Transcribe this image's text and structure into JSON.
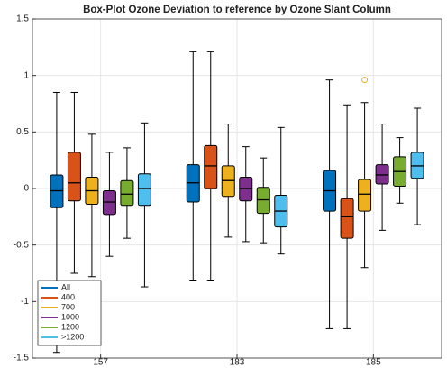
{
  "chart_data": {
    "type": "box",
    "title": "Box-Plot Ozone Deviation to reference by Ozone Slant Column",
    "categories": [
      "157",
      "183",
      "185"
    ],
    "ylim": [
      -1.5,
      1.5
    ],
    "yticks": [
      -1.5,
      -1,
      -0.5,
      0,
      0.5,
      1,
      1.5
    ],
    "grid": true,
    "legend": "lower left",
    "series": [
      {
        "name": "All",
        "color": "#0072bd",
        "low": [
          -1.45,
          -0.81,
          -1.24
        ],
        "q1": [
          -0.17,
          -0.12,
          -0.2
        ],
        "median": [
          -0.02,
          0.05,
          -0.02
        ],
        "q3": [
          0.12,
          0.21,
          0.16
        ],
        "high": [
          0.85,
          1.21,
          0.96
        ]
      },
      {
        "name": "400",
        "color": "#d95319",
        "low": [
          -0.75,
          -0.81,
          -1.24
        ],
        "q1": [
          -0.11,
          0,
          -0.44
        ],
        "median": [
          0.05,
          0.2,
          -0.25
        ],
        "q3": [
          0.32,
          0.38,
          -0.09
        ],
        "high": [
          0.85,
          1.21,
          0.74
        ]
      },
      {
        "name": "700",
        "color": "#edb120",
        "low": [
          -0.78,
          -0.43,
          -0.7
        ],
        "q1": [
          -0.14,
          -0.07,
          -0.2
        ],
        "median": [
          -0.02,
          0.07,
          -0.05
        ],
        "q3": [
          0.1,
          0.2,
          0.08
        ],
        "high": [
          0.48,
          0.57,
          0.76
        ],
        "outliers": [
          [],
          [],
          [
            0.96
          ]
        ]
      },
      {
        "name": "1000",
        "color": "#7e2f8e",
        "low": [
          -0.6,
          -0.47,
          -0.37
        ],
        "q1": [
          -0.23,
          -0.11,
          0.04
        ],
        "median": [
          -0.12,
          0,
          0.12
        ],
        "q3": [
          -0.02,
          0.1,
          0.21
        ],
        "high": [
          0.32,
          0.37,
          0.57
        ]
      },
      {
        "name": "1200",
        "color": "#77ac30",
        "low": [
          -0.44,
          -0.48,
          -0.13
        ],
        "q1": [
          -0.15,
          -0.22,
          0.02
        ],
        "median": [
          -0.05,
          -0.1,
          0.15
        ],
        "q3": [
          0.07,
          0.01,
          0.28
        ],
        "high": [
          0.36,
          0.27,
          0.45
        ]
      },
      {
        "name": ">1200",
        "color": "#4dbeee",
        "low": [
          -0.87,
          -0.58,
          -0.32
        ],
        "q1": [
          -0.15,
          -0.34,
          0.09
        ],
        "median": [
          0,
          -0.2,
          0.2
        ],
        "q3": [
          0.13,
          -0.06,
          0.32
        ],
        "high": [
          0.58,
          0.54,
          0.71
        ]
      }
    ]
  }
}
